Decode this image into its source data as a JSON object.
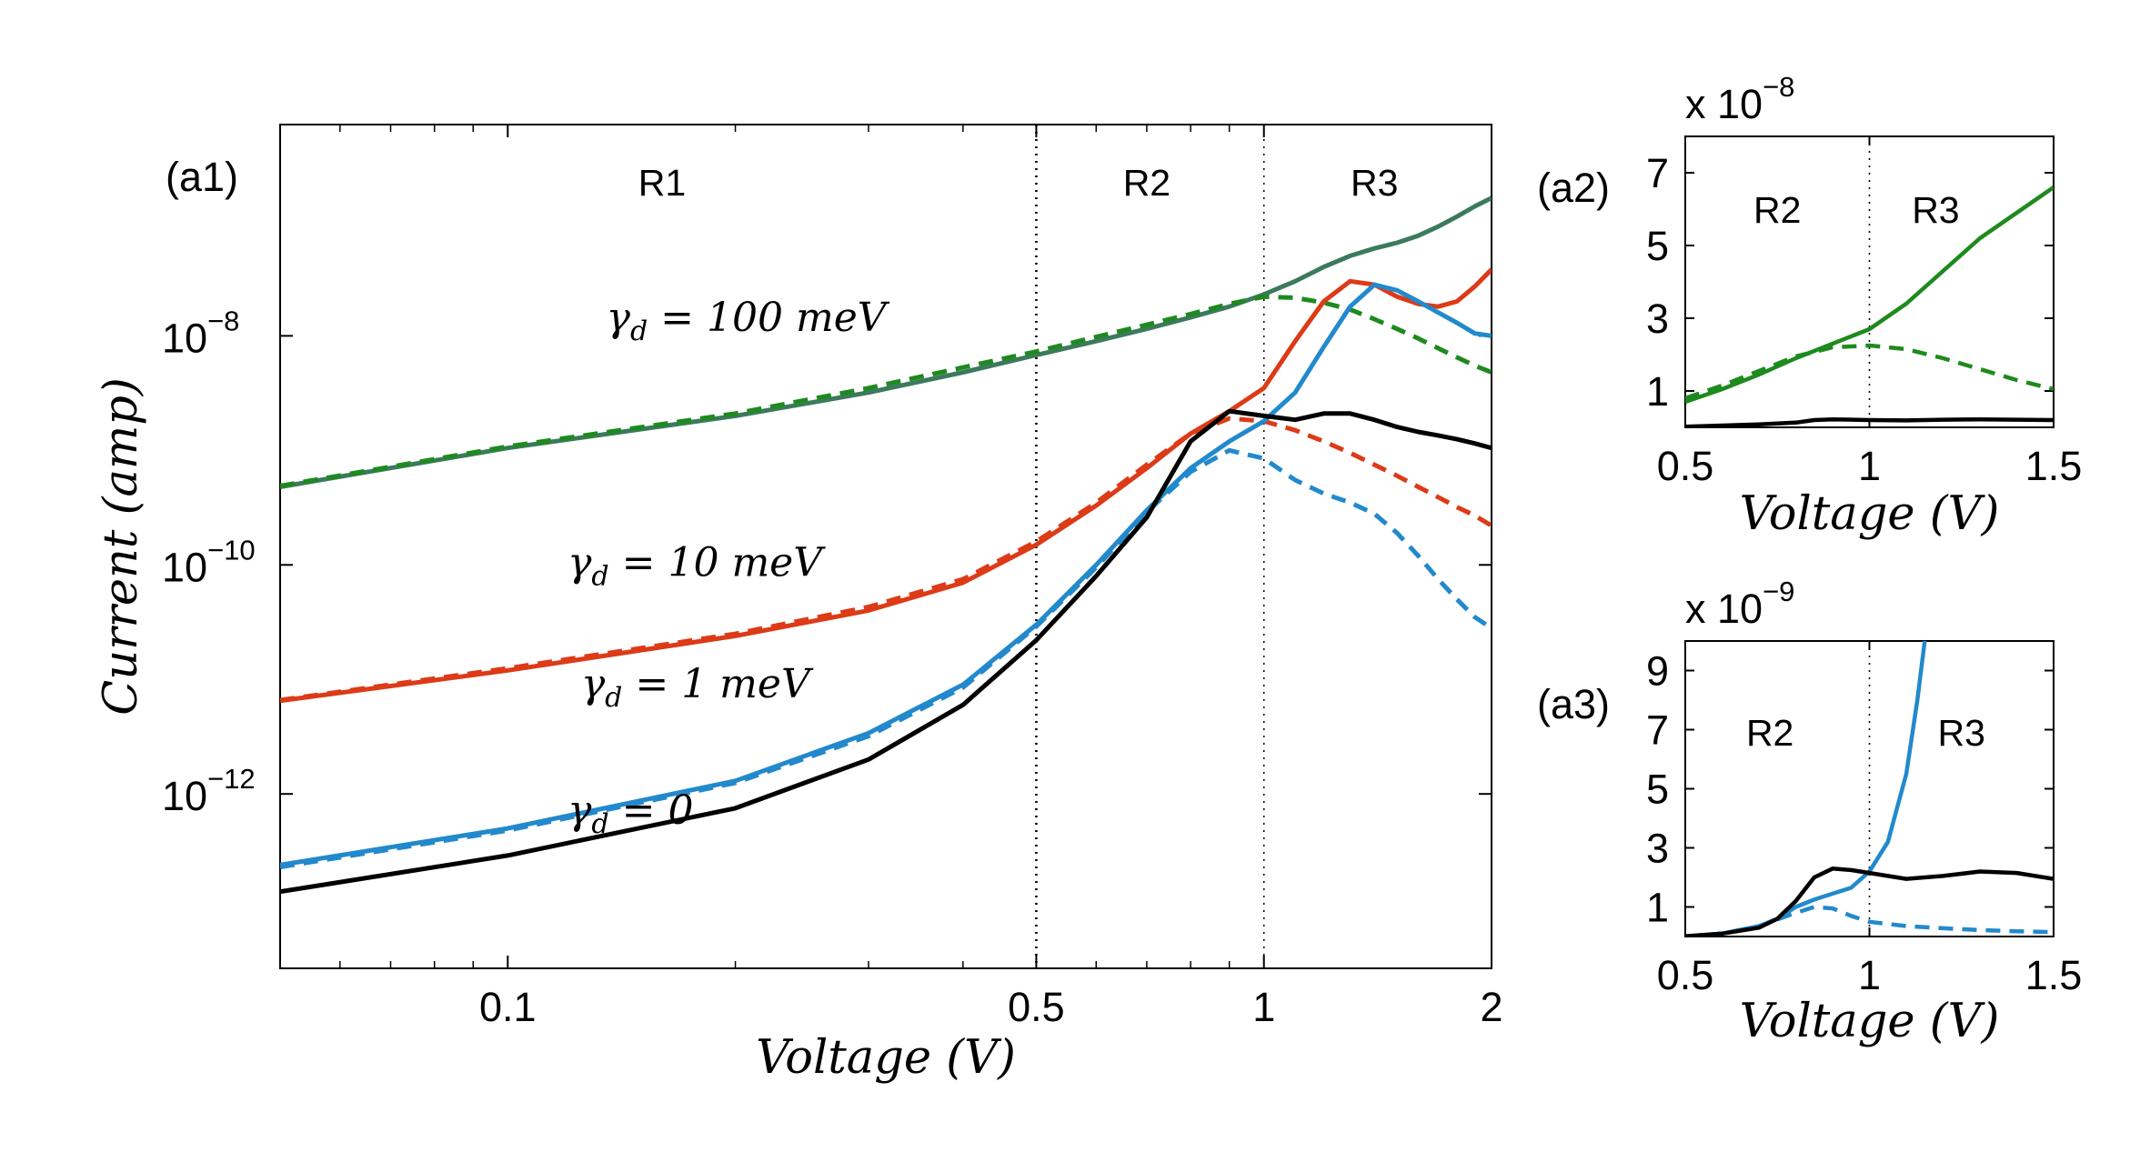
{
  "colors": {
    "green": "#1e8a1e",
    "teal": "#3b7a5c",
    "red": "#dd3a17",
    "blue": "#2289cc",
    "black": "#000000"
  },
  "chart_data": [
    {
      "id": "a1",
      "type": "line",
      "panel_label": "(a1)",
      "xlabel": "Voltage (V)",
      "ylabel": "Current (amp)",
      "xscale": "log",
      "yscale": "log",
      "xlim": [
        0.05,
        2
      ],
      "ylim": [
        3e-14,
        7e-07
      ],
      "x_ticks": [
        0.1,
        0.5,
        1,
        2
      ],
      "x_tick_labels": [
        "0.1",
        "0.5",
        "1",
        "2"
      ],
      "y_ticks": [
        1e-12,
        1e-10,
        1e-08
      ],
      "y_tick_labels": [
        {
          "base": "10",
          "exp": "−12"
        },
        {
          "base": "10",
          "exp": "−10"
        },
        {
          "base": "10",
          "exp": "−8"
        }
      ],
      "vlines": [
        0.5,
        1
      ],
      "regions": [
        {
          "label": "R1",
          "x": 0.16
        },
        {
          "label": "R2",
          "x": 0.7
        },
        {
          "label": "R3",
          "x": 1.4
        }
      ],
      "annotations": [
        {
          "main": "γ",
          "sub": "d",
          "rest": " = 100 meV",
          "x": 0.135,
          "y": 1.1e-08
        },
        {
          "main": "γ",
          "sub": "d",
          "rest": " = 10 meV",
          "x": 0.12,
          "y": 8e-11
        },
        {
          "main": "γ",
          "sub": "d",
          "rest": " = 1 meV",
          "x": 0.125,
          "y": 7e-12
        },
        {
          "main": "γ",
          "sub": "d",
          "rest": " = 0",
          "x": 0.12,
          "y": 5.5e-13
        }
      ],
      "series": [
        {
          "name": "γd = 100 meV (solid)",
          "color": "teal",
          "dash": false,
          "x": [
            0.05,
            0.1,
            0.2,
            0.3,
            0.4,
            0.5,
            0.6,
            0.7,
            0.8,
            0.9,
            1.0,
            1.1,
            1.2,
            1.3,
            1.4,
            1.5,
            1.6,
            1.7,
            1.8,
            1.9,
            2.0
          ],
          "y": [
            4.8e-10,
            1.05e-09,
            2e-09,
            3.2e-09,
            4.8e-09,
            6.8e-09,
            9e-09,
            1.15e-08,
            1.45e-08,
            1.8e-08,
            2.3e-08,
            3e-08,
            4e-08,
            5e-08,
            5.8e-08,
            6.5e-08,
            7.5e-08,
            9e-08,
            1.1e-07,
            1.35e-07,
            1.6e-07
          ]
        },
        {
          "name": "γd = 100 meV (dashed)",
          "color": "green",
          "dash": true,
          "x": [
            0.05,
            0.1,
            0.2,
            0.3,
            0.4,
            0.5,
            0.6,
            0.7,
            0.8,
            0.9,
            1.0,
            1.1,
            1.2,
            1.3,
            1.4,
            1.5,
            1.6,
            1.7,
            1.8,
            1.9,
            2.0
          ],
          "y": [
            4.9e-10,
            1.08e-09,
            2.1e-09,
            3.5e-09,
            5.3e-09,
            7.3e-09,
            9.8e-09,
            1.25e-08,
            1.55e-08,
            1.9e-08,
            2.2e-08,
            2.15e-08,
            1.95e-08,
            1.7e-08,
            1.4e-08,
            1.15e-08,
            9.5e-09,
            7.8e-09,
            6.5e-09,
            5.5e-09,
            4.8e-09
          ]
        },
        {
          "name": "γd = 10 meV (solid)",
          "color": "red",
          "dash": false,
          "x": [
            0.05,
            0.1,
            0.2,
            0.3,
            0.4,
            0.5,
            0.6,
            0.7,
            0.8,
            0.9,
            1.0,
            1.1,
            1.2,
            1.3,
            1.4,
            1.5,
            1.6,
            1.7,
            1.8,
            1.9,
            2.0
          ],
          "y": [
            6.5e-12,
            1.2e-11,
            2.4e-11,
            4e-11,
            7e-11,
            1.5e-10,
            3.3e-10,
            7e-10,
            1.4e-09,
            2.2e-09,
            3.5e-09,
            9e-09,
            2e-08,
            3e-08,
            2.8e-08,
            2.2e-08,
            1.9e-08,
            1.8e-08,
            2e-08,
            2.7e-08,
            3.8e-08
          ]
        },
        {
          "name": "γd = 10 meV (dashed)",
          "color": "red",
          "dash": true,
          "x": [
            0.05,
            0.1,
            0.2,
            0.3,
            0.4,
            0.5,
            0.6,
            0.7,
            0.8,
            0.9,
            1.0,
            1.1,
            1.2,
            1.3,
            1.4,
            1.5,
            1.6,
            1.7,
            1.8,
            1.9,
            2.0
          ],
          "y": [
            6.6e-12,
            1.25e-11,
            2.5e-11,
            4.3e-11,
            7.5e-11,
            1.6e-10,
            3.5e-10,
            7.5e-10,
            1.4e-09,
            1.9e-09,
            1.8e-09,
            1.5e-09,
            1.2e-09,
            9.5e-10,
            7.5e-10,
            6e-10,
            4.8e-10,
            3.9e-10,
            3.2e-10,
            2.7e-10,
            2.2e-10
          ]
        },
        {
          "name": "γd = 1 meV (solid)",
          "color": "blue",
          "dash": false,
          "x": [
            0.05,
            0.1,
            0.2,
            0.3,
            0.4,
            0.5,
            0.6,
            0.7,
            0.8,
            0.9,
            1.0,
            1.1,
            1.2,
            1.3,
            1.4,
            1.5,
            1.6,
            1.7,
            1.8,
            1.9,
            2.0
          ],
          "y": [
            2.4e-13,
            5e-13,
            1.3e-12,
            3.4e-12,
            9e-12,
            3e-11,
            1e-10,
            3e-10,
            7e-10,
            1.2e-09,
            1.8e-09,
            3.2e-09,
            8e-09,
            1.8e-08,
            2.8e-08,
            2.5e-08,
            2e-08,
            1.6e-08,
            1.3e-08,
            1.05e-08,
            1e-08
          ]
        },
        {
          "name": "γd = 1 meV (dashed)",
          "color": "blue",
          "dash": true,
          "x": [
            0.05,
            0.1,
            0.2,
            0.3,
            0.4,
            0.5,
            0.6,
            0.7,
            0.8,
            0.9,
            1.0,
            1.1,
            1.2,
            1.3,
            1.4,
            1.5,
            1.6,
            1.7,
            1.8,
            1.9,
            2.0
          ],
          "y": [
            2.3e-13,
            4.8e-13,
            1.25e-12,
            3.2e-12,
            8.5e-12,
            2.9e-11,
            9.5e-11,
            2.9e-10,
            6.5e-10,
            1e-09,
            8.5e-10,
            5.5e-10,
            4.2e-10,
            3.5e-10,
            2.8e-10,
            1.9e-10,
            1.2e-10,
            7.5e-11,
            5e-11,
            3.5e-11,
            2.8e-11
          ]
        },
        {
          "name": "γd = 0 (solid)",
          "color": "black",
          "dash": false,
          "x": [
            0.05,
            0.1,
            0.2,
            0.3,
            0.4,
            0.5,
            0.6,
            0.7,
            0.8,
            0.9,
            1.0,
            1.1,
            1.2,
            1.3,
            1.4,
            1.5,
            1.6,
            1.7,
            1.8,
            1.9,
            2.0
          ],
          "y": [
            1.4e-13,
            2.9e-13,
            7.5e-13,
            2e-12,
            6e-12,
            2.2e-11,
            8e-11,
            2.6e-10,
            1.2e-09,
            2.2e-09,
            2e-09,
            1.85e-09,
            2.1e-09,
            2.1e-09,
            1.85e-09,
            1.6e-09,
            1.45e-09,
            1.35e-09,
            1.25e-09,
            1.15e-09,
            1.05e-09
          ]
        }
      ]
    },
    {
      "id": "a2",
      "type": "line",
      "panel_label": "(a2)",
      "multiplier": {
        "base": "x 10",
        "exp": "−8"
      },
      "xlabel": "Voltage (V)",
      "xlim": [
        0.5,
        1.5
      ],
      "ylim": [
        0,
        8
      ],
      "x_ticks": [
        0.5,
        1,
        1.5
      ],
      "x_tick_labels": [
        "0.5",
        "1",
        "1.5"
      ],
      "y_ticks": [
        1,
        3,
        5,
        7
      ],
      "y_tick_labels": [
        "1",
        "3",
        "5",
        "7"
      ],
      "vlines": [
        1
      ],
      "regions": [
        {
          "label": "R2",
          "x": 0.75
        },
        {
          "label": "R3",
          "x": 1.18
        }
      ],
      "series": [
        {
          "name": "γd = 100 meV (solid)",
          "color": "green",
          "dash": false,
          "x": [
            0.5,
            0.6,
            0.7,
            0.8,
            0.9,
            1.0,
            1.1,
            1.2,
            1.3,
            1.4,
            1.5
          ],
          "y": [
            0.7,
            1.05,
            1.45,
            1.9,
            2.3,
            2.7,
            3.4,
            4.3,
            5.2,
            5.9,
            6.6
          ]
        },
        {
          "name": "γd = 100 meV (dashed)",
          "color": "green",
          "dash": true,
          "x": [
            0.5,
            0.6,
            0.7,
            0.8,
            0.9,
            1.0,
            1.1,
            1.2,
            1.3,
            1.4,
            1.5
          ],
          "y": [
            0.8,
            1.15,
            1.55,
            1.95,
            2.2,
            2.25,
            2.15,
            1.9,
            1.6,
            1.3,
            1.05
          ]
        },
        {
          "name": "γd = 0 (solid)",
          "color": "black",
          "dash": false,
          "x": [
            0.5,
            0.6,
            0.7,
            0.8,
            0.85,
            0.9,
            1.0,
            1.1,
            1.2,
            1.3,
            1.4,
            1.5
          ],
          "y": [
            0.02,
            0.05,
            0.08,
            0.13,
            0.2,
            0.22,
            0.2,
            0.19,
            0.21,
            0.22,
            0.21,
            0.2
          ]
        }
      ]
    },
    {
      "id": "a3",
      "type": "line",
      "panel_label": "(a3)",
      "multiplier": {
        "base": "x 10",
        "exp": "−9"
      },
      "xlabel": "Voltage (V)",
      "xlim": [
        0.5,
        1.5
      ],
      "ylim": [
        0,
        10
      ],
      "x_ticks": [
        0.5,
        1,
        1.5
      ],
      "x_tick_labels": [
        "0.5",
        "1",
        "1.5"
      ],
      "y_ticks": [
        1,
        3,
        5,
        7,
        9
      ],
      "y_tick_labels": [
        "1",
        "3",
        "5",
        "7",
        "9"
      ],
      "vlines": [
        1
      ],
      "regions": [
        {
          "label": "R2",
          "x": 0.73
        },
        {
          "label": "R3",
          "x": 1.25
        }
      ],
      "series": [
        {
          "name": "γd = 1 meV (solid)",
          "color": "blue",
          "dash": false,
          "x": [
            0.5,
            0.6,
            0.7,
            0.75,
            0.8,
            0.85,
            0.9,
            0.95,
            1.0,
            1.05,
            1.1,
            1.13,
            1.15
          ],
          "y": [
            0.01,
            0.1,
            0.35,
            0.6,
            1.0,
            1.25,
            1.45,
            1.65,
            2.2,
            3.2,
            5.5,
            8.0,
            10.0
          ]
        },
        {
          "name": "γd = 1 meV (dashed)",
          "color": "blue",
          "dash": true,
          "x": [
            0.5,
            0.6,
            0.7,
            0.8,
            0.85,
            0.9,
            0.95,
            1.0,
            1.1,
            1.2,
            1.3,
            1.4,
            1.5
          ],
          "y": [
            0.01,
            0.1,
            0.35,
            0.8,
            1.0,
            0.95,
            0.7,
            0.5,
            0.35,
            0.28,
            0.22,
            0.18,
            0.15
          ]
        },
        {
          "name": "γd = 0 (solid)",
          "color": "black",
          "dash": false,
          "x": [
            0.5,
            0.6,
            0.7,
            0.75,
            0.8,
            0.85,
            0.9,
            0.95,
            1.0,
            1.1,
            1.2,
            1.3,
            1.4,
            1.5
          ],
          "y": [
            0.01,
            0.1,
            0.3,
            0.6,
            1.2,
            2.0,
            2.3,
            2.25,
            2.15,
            1.95,
            2.05,
            2.2,
            2.15,
            1.95
          ]
        }
      ]
    }
  ]
}
